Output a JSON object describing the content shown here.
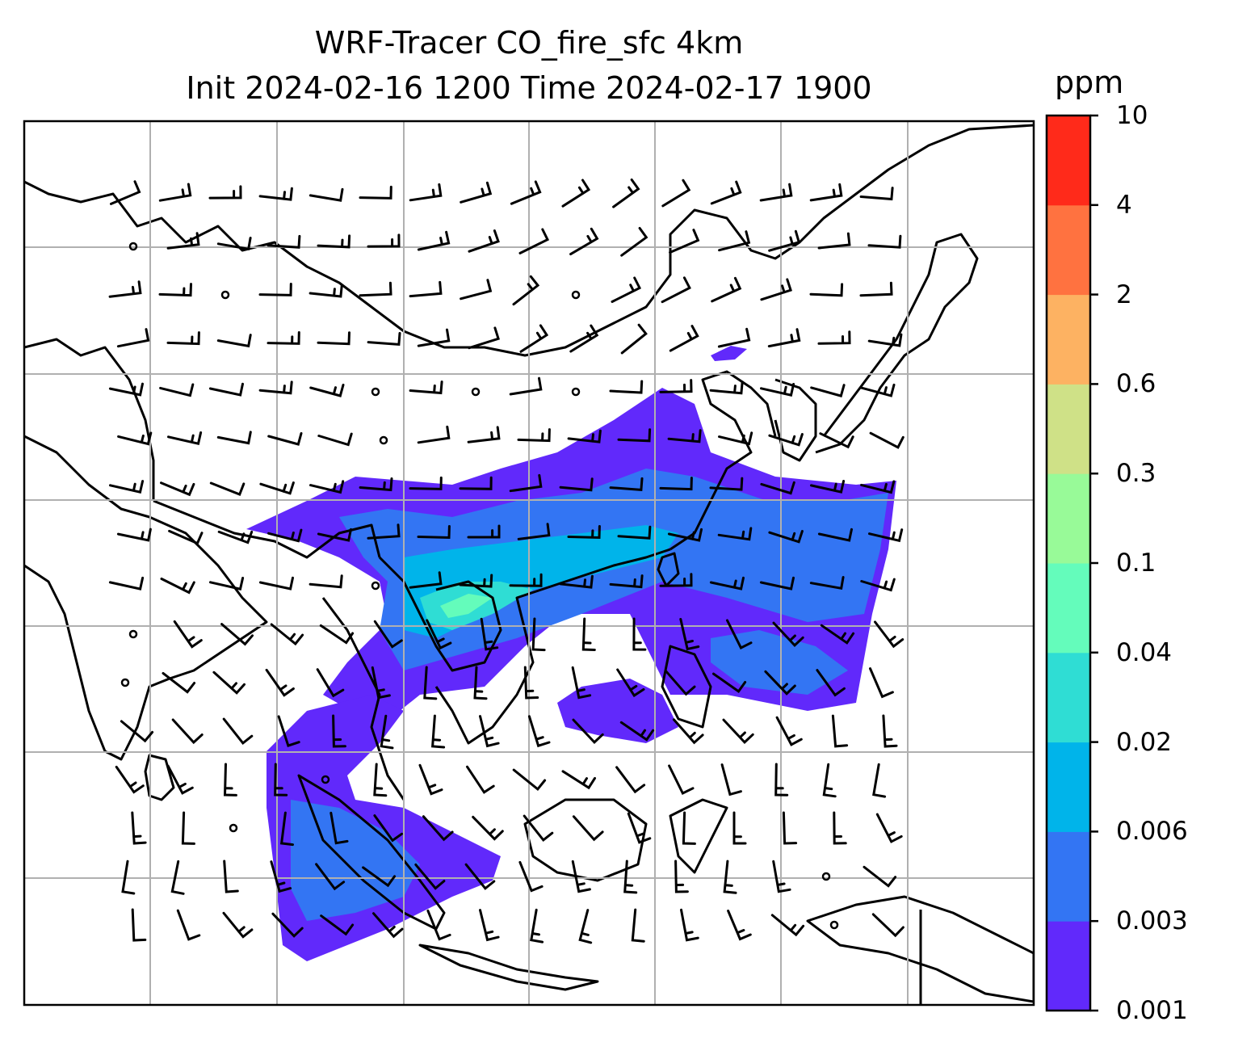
{
  "title": {
    "line1": "WRF-Tracer CO_fire_sfc 4km",
    "line2": "Init 2024-02-16 1200 Time 2024-02-17 1900"
  },
  "colorbar": {
    "unit": "ppm",
    "levels": [
      "0.001",
      "0.003",
      "0.006",
      "0.02",
      "0.04",
      "0.1",
      "0.3",
      "0.6",
      "2",
      "4",
      "10"
    ],
    "colors": [
      "#6129fb",
      "#3375f3",
      "#00b4ea",
      "#2fddd4",
      "#64fcbb",
      "#98fa98",
      "#cfe187",
      "#fdb262",
      "#ff7240",
      "#ff2a1a"
    ]
  },
  "map": {
    "region": "South and Southeast Asia",
    "gridlines": true,
    "field": "CO_fire_sfc",
    "overlay": "wind-barbs"
  }
}
